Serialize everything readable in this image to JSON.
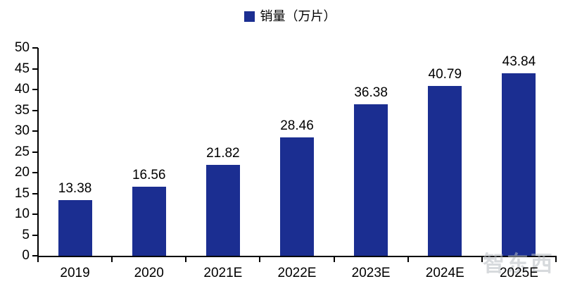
{
  "watermark": {
    "text": "智东西"
  },
  "chart_data": {
    "type": "bar",
    "title": "",
    "legend": "销量（万片）",
    "legend_position": "top-center",
    "categories": [
      "2019",
      "2020",
      "2021E",
      "2022E",
      "2023E",
      "2024E",
      "2025E"
    ],
    "values": [
      13.38,
      16.56,
      21.82,
      28.46,
      36.38,
      40.79,
      43.84
    ],
    "value_labels": [
      "13.38",
      "16.56",
      "21.82",
      "28.46",
      "36.38",
      "40.79",
      "43.84"
    ],
    "series_name": "销量（万片）",
    "xlabel": "",
    "ylabel": "",
    "ylim": [
      0,
      50
    ],
    "ytick_step": 5,
    "ytick_labels": [
      "0",
      "5",
      "10",
      "15",
      "20",
      "25",
      "30",
      "35",
      "40",
      "45",
      "50"
    ],
    "grid": false,
    "bar_color": "#1b2e91",
    "axis_color": "#000000",
    "text_color": "#000000"
  }
}
